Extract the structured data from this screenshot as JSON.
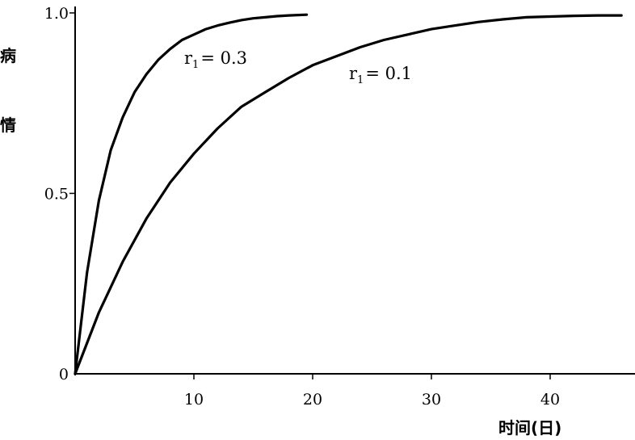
{
  "chart_data": {
    "type": "line",
    "title": "",
    "xlabel": "时间(日)",
    "ylabel": "病情",
    "xlim": [
      0,
      47
    ],
    "ylim": [
      0,
      1.0
    ],
    "x_ticks": [
      10,
      20,
      30,
      40
    ],
    "x_tick_labels": [
      "10",
      "20",
      "30",
      "40"
    ],
    "y_ticks": [
      0,
      0.5,
      1.0
    ],
    "y_tick_labels": [
      "0",
      "0.5",
      "1.0"
    ],
    "grid": false,
    "legend": "none",
    "series": [
      {
        "name": "r1 = 0.3",
        "label_main": "r",
        "label_sub": "1",
        "label_rest": "= 0.3",
        "x": [
          0,
          1,
          2,
          3,
          4,
          5,
          6,
          7,
          8,
          9,
          10,
          11,
          12,
          13,
          14,
          15,
          16,
          17,
          18,
          19.5
        ],
        "y": [
          0,
          0.28,
          0.48,
          0.62,
          0.71,
          0.78,
          0.83,
          0.87,
          0.9,
          0.925,
          0.94,
          0.955,
          0.965,
          0.973,
          0.98,
          0.985,
          0.988,
          0.991,
          0.993,
          0.995
        ]
      },
      {
        "name": "r1 = 0.1",
        "label_main": "r",
        "label_sub": "1",
        "label_rest": "= 0.1",
        "x": [
          0,
          2,
          4,
          6,
          8,
          10,
          12,
          14,
          16,
          18,
          20,
          22,
          24,
          26,
          28,
          30,
          32,
          34,
          36,
          38,
          40,
          42,
          44,
          46
        ],
        "y": [
          0,
          0.17,
          0.31,
          0.43,
          0.53,
          0.61,
          0.68,
          0.74,
          0.78,
          0.82,
          0.855,
          0.88,
          0.905,
          0.925,
          0.94,
          0.955,
          0.965,
          0.975,
          0.982,
          0.988,
          0.99,
          0.992,
          0.993,
          0.993
        ]
      }
    ]
  }
}
